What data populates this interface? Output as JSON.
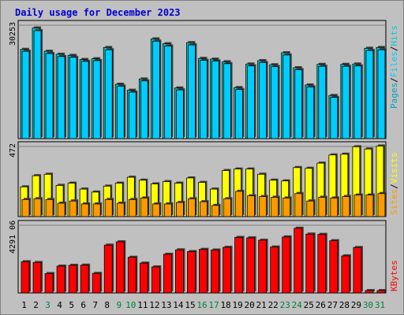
{
  "title": "Daily usage for December 2023",
  "colors": {
    "background": "#c0c0c0",
    "plot": "#c0c0c0",
    "hits": "#00cccc",
    "files": "#00ccff",
    "pages": "#00a0c0",
    "visits": "#ffff00",
    "sites": "#ff9900",
    "kbytes": "#ff0000",
    "title": "#0000cc",
    "weekend_label": "#008040"
  },
  "chart_data": [
    {
      "type": "bar",
      "panel": "hits-files-pages",
      "y_label_pages": "Pages",
      "y_label_files": "Files",
      "y_label_hits": "Hits",
      "y_max_label": "30253",
      "ylim": [
        0,
        30253
      ],
      "categories": [
        "1",
        "2",
        "3",
        "4",
        "5",
        "6",
        "7",
        "8",
        "9",
        "10",
        "11",
        "12",
        "13",
        "14",
        "15",
        "16",
        "17",
        "18",
        "19",
        "20",
        "21",
        "22",
        "23",
        "24",
        "25",
        "26",
        "27",
        "28",
        "29",
        "30",
        "31"
      ],
      "series": [
        {
          "name": "Hits",
          "values": [
            23800,
            29500,
            23300,
            22500,
            22200,
            21100,
            21300,
            24300,
            14500,
            12900,
            15900,
            26600,
            25300,
            13500,
            25600,
            21400,
            21200,
            20500,
            13600,
            19900,
            20800,
            19700,
            22900,
            18900,
            14300,
            19800,
            11500,
            19800,
            19900,
            24100,
            24300
          ]
        },
        {
          "name": "Files",
          "values": [
            23300,
            28800,
            22700,
            21900,
            21700,
            20600,
            20800,
            23700,
            14000,
            12400,
            15400,
            26000,
            24700,
            13000,
            25000,
            20900,
            20700,
            20000,
            13100,
            19400,
            20300,
            19200,
            22300,
            18400,
            13800,
            19300,
            11000,
            19300,
            19400,
            23500,
            23700
          ]
        }
      ]
    },
    {
      "type": "bar",
      "panel": "visits-sites",
      "y_label_sites": "Sites",
      "y_label_visits": "Visits",
      "y_max_label": "472",
      "ylim": [
        0,
        472
      ],
      "categories": [
        "1",
        "2",
        "3",
        "4",
        "5",
        "6",
        "7",
        "8",
        "9",
        "10",
        "11",
        "12",
        "13",
        "14",
        "15",
        "16",
        "17",
        "18",
        "19",
        "20",
        "21",
        "22",
        "23",
        "24",
        "25",
        "26",
        "27",
        "28",
        "29",
        "30",
        "31"
      ],
      "series": [
        {
          "name": "Visits",
          "values": [
            200,
            275,
            285,
            210,
            225,
            185,
            165,
            205,
            225,
            265,
            245,
            220,
            235,
            225,
            260,
            230,
            185,
            310,
            320,
            320,
            285,
            245,
            240,
            330,
            325,
            360,
            415,
            420,
            470,
            455,
            475
          ]
        },
        {
          "name": "Sites",
          "values": [
            115,
            120,
            115,
            90,
            105,
            85,
            85,
            115,
            90,
            115,
            125,
            85,
            85,
            95,
            120,
            100,
            75,
            120,
            170,
            140,
            135,
            130,
            125,
            155,
            105,
            130,
            125,
            135,
            145,
            145,
            155
          ]
        }
      ]
    },
    {
      "type": "bar",
      "panel": "kbytes",
      "y_label_kbytes": "KBytes",
      "y_max_label": "4291 06",
      "ylim": [
        0,
        429106
      ],
      "categories": [
        "1",
        "2",
        "3",
        "4",
        "5",
        "6",
        "7",
        "8",
        "9",
        "10",
        "11",
        "12",
        "13",
        "14",
        "15",
        "16",
        "17",
        "18",
        "19",
        "20",
        "21",
        "22",
        "23",
        "24",
        "25",
        "26",
        "27",
        "28",
        "29",
        "30",
        "31"
      ],
      "series": [
        {
          "name": "KBytes",
          "values": [
            198000,
            193000,
            123000,
            170000,
            175000,
            176000,
            124000,
            303000,
            324000,
            226000,
            189000,
            165000,
            245000,
            273000,
            262000,
            276000,
            272000,
            289000,
            352000,
            349000,
            334000,
            291000,
            355000,
            410000,
            373000,
            371000,
            331000,
            235000,
            288000,
            15000,
            15000
          ]
        }
      ]
    }
  ],
  "x_labels": [
    {
      "text": "1",
      "weekend": false
    },
    {
      "text": "2",
      "weekend": false
    },
    {
      "text": "3",
      "weekend": true
    },
    {
      "text": "4",
      "weekend": false
    },
    {
      "text": "5",
      "weekend": false
    },
    {
      "text": "6",
      "weekend": false
    },
    {
      "text": "7",
      "weekend": false
    },
    {
      "text": "8",
      "weekend": false
    },
    {
      "text": "9",
      "weekend": true
    },
    {
      "text": "10",
      "weekend": true
    },
    {
      "text": "11",
      "weekend": false
    },
    {
      "text": "12",
      "weekend": false
    },
    {
      "text": "13",
      "weekend": false
    },
    {
      "text": "14",
      "weekend": false
    },
    {
      "text": "15",
      "weekend": false
    },
    {
      "text": "16",
      "weekend": true
    },
    {
      "text": "17",
      "weekend": true
    },
    {
      "text": "18",
      "weekend": false
    },
    {
      "text": "19",
      "weekend": false
    },
    {
      "text": "20",
      "weekend": false
    },
    {
      "text": "21",
      "weekend": false
    },
    {
      "text": "22",
      "weekend": false
    },
    {
      "text": "23",
      "weekend": true
    },
    {
      "text": "24",
      "weekend": true
    },
    {
      "text": "25",
      "weekend": false
    },
    {
      "text": "26",
      "weekend": false
    },
    {
      "text": "27",
      "weekend": false
    },
    {
      "text": "28",
      "weekend": false
    },
    {
      "text": "29",
      "weekend": false
    },
    {
      "text": "30",
      "weekend": true
    },
    {
      "text": "31",
      "weekend": true
    }
  ]
}
